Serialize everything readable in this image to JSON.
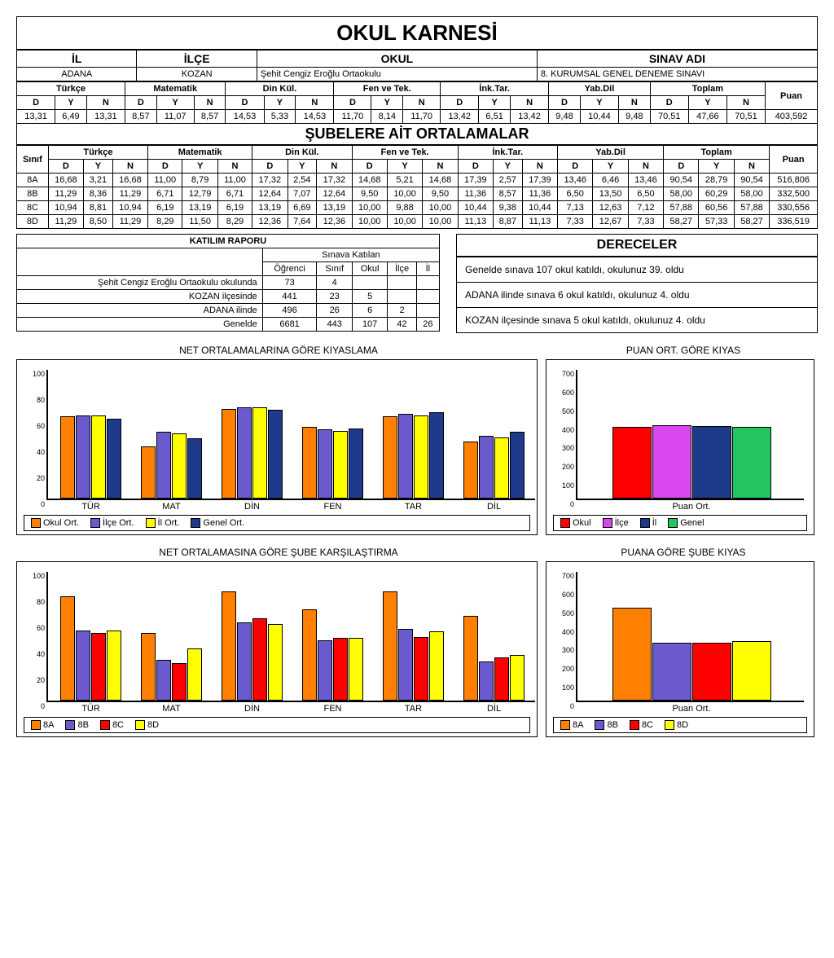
{
  "title": "OKUL KARNESİ",
  "header": {
    "labels": [
      "İL",
      "İLÇE",
      "OKUL",
      "SINAV ADI"
    ],
    "values": [
      "ADANA",
      "KOZAN",
      "Şehit Cengiz Eroğlu Ortaokulu",
      "8. KURUMSAL GENEL DENEME SINAVI"
    ]
  },
  "subject_headers": [
    "Türkçe",
    "Matematik",
    "Din Kül.",
    "Fen ve Tek.",
    "İnk.Tar.",
    "Yab.Dil",
    "Toplam"
  ],
  "dyn": [
    "D",
    "Y",
    "N"
  ],
  "puan_label": "Puan",
  "school_row": [
    "13,31",
    "6,49",
    "13,31",
    "8,57",
    "11,07",
    "8,57",
    "14,53",
    "5,33",
    "14,53",
    "11,70",
    "8,14",
    "11,70",
    "13,42",
    "6,51",
    "13,42",
    "9,48",
    "10,44",
    "9,48",
    "70,51",
    "47,66",
    "70,51",
    "403,592"
  ],
  "sube_title": "ŞUBELERE AİT ORTALAMALAR",
  "sinif_label": "Sınıf",
  "sube_rows": [
    {
      "sinif": "8A",
      "vals": [
        "16,68",
        "3,21",
        "16,68",
        "11,00",
        "8,79",
        "11,00",
        "17,32",
        "2,54",
        "17,32",
        "14,68",
        "5,21",
        "14,68",
        "17,39",
        "2,57",
        "17,39",
        "13,46",
        "6,46",
        "13,46",
        "90,54",
        "28,79",
        "90,54",
        "516,806"
      ]
    },
    {
      "sinif": "8B",
      "vals": [
        "11,29",
        "8,36",
        "11,29",
        "6,71",
        "12,79",
        "6,71",
        "12,64",
        "7,07",
        "12,64",
        "9,50",
        "10,00",
        "9,50",
        "11,36",
        "8,57",
        "11,36",
        "6,50",
        "13,50",
        "6,50",
        "58,00",
        "60,29",
        "58,00",
        "332,500"
      ]
    },
    {
      "sinif": "8C",
      "vals": [
        "10,94",
        "8,81",
        "10,94",
        "6,19",
        "13,19",
        "6,19",
        "13,19",
        "6,69",
        "13,19",
        "10,00",
        "9,88",
        "10,00",
        "10,44",
        "9,38",
        "10,44",
        "7,13",
        "12,63",
        "7,12",
        "57,88",
        "60,56",
        "57,88",
        "330,556"
      ]
    },
    {
      "sinif": "8D",
      "vals": [
        "11,29",
        "8,50",
        "11,29",
        "8,29",
        "11,50",
        "8,29",
        "12,36",
        "7,64",
        "12,36",
        "10,00",
        "10,00",
        "10,00",
        "11,13",
        "8,87",
        "11,13",
        "7,33",
        "12,67",
        "7,33",
        "58,27",
        "57,33",
        "58,27",
        "336,519"
      ]
    }
  ],
  "katilim": {
    "title": "KATILIM RAPORU",
    "band": "Sınava Katılan",
    "cols": [
      "Öğrenci",
      "Sınıf",
      "Okul",
      "İlçe",
      "İl"
    ],
    "rows": [
      {
        "label": "Şehit Cengiz Eroğlu Ortaokulu okulunda",
        "vals": [
          "73",
          "4",
          "",
          "",
          ""
        ]
      },
      {
        "label": "KOZAN ilçesinde",
        "vals": [
          "441",
          "23",
          "5",
          "",
          ""
        ]
      },
      {
        "label": "ADANA ilinde",
        "vals": [
          "496",
          "26",
          "6",
          "2",
          ""
        ]
      },
      {
        "label": "Genelde",
        "vals": [
          "6681",
          "443",
          "107",
          "42",
          "26"
        ]
      }
    ]
  },
  "dereceler": {
    "title": "DERECELER",
    "lines": [
      "Genelde sınava 107 okul katıldı, okulunuz 39. oldu",
      "ADANA ilinde sınava 6 okul katıldı, okulunuz 4. oldu",
      "KOZAN ilçesinde sınava 5 okul katıldı, okulunuz 4. oldu"
    ]
  },
  "chart1": {
    "title": "NET ORTALAMALARINA GÖRE KIYASLAMA",
    "ymax": 100,
    "yticks": [
      0,
      20,
      40,
      60,
      80,
      100
    ],
    "categories": [
      "TÜR",
      "MAT",
      "DİN",
      "FEN",
      "TAR",
      "DİL"
    ],
    "series": [
      {
        "name": "Okul Ort.",
        "color": "#ff7f00",
        "values": [
          63,
          40,
          69,
          55,
          63,
          44
        ]
      },
      {
        "name": "İlçe Ort.",
        "color": "#6a5acd",
        "values": [
          64,
          51,
          70,
          53,
          65,
          48
        ]
      },
      {
        "name": "İl Ort.",
        "color": "#ffff00",
        "values": [
          64,
          50,
          70,
          52,
          64,
          47
        ]
      },
      {
        "name": "Genel Ort.",
        "color": "#1e3a8a",
        "values": [
          61,
          46,
          68,
          54,
          66,
          51
        ]
      }
    ]
  },
  "chart2": {
    "title": "PUAN ORT. GÖRE KIYAS",
    "ymax": 700,
    "yticks": [
      0,
      100,
      200,
      300,
      400,
      500,
      600,
      700
    ],
    "categories": [
      "Puan Ort."
    ],
    "series": [
      {
        "name": "Okul",
        "color": "#ff0000",
        "values": [
          385
        ]
      },
      {
        "name": "İlçe",
        "color": "#d946ef",
        "values": [
          395
        ]
      },
      {
        "name": "İl",
        "color": "#1e3a8a",
        "values": [
          390
        ]
      },
      {
        "name": "Genel",
        "color": "#22c55e",
        "values": [
          385
        ]
      }
    ]
  },
  "chart3": {
    "title": "NET ORTALAMASINA GÖRE ŞUBE KARŞILAŞTIRMA",
    "ymax": 100,
    "yticks": [
      0,
      20,
      40,
      60,
      80,
      100
    ],
    "categories": [
      "TÜR",
      "MAT",
      "DİN",
      "FEN",
      "TAR",
      "DİL"
    ],
    "series": [
      {
        "name": "8A",
        "color": "#ff7f00",
        "values": [
          80,
          52,
          84,
          70,
          84,
          65
        ]
      },
      {
        "name": "8B",
        "color": "#6a5acd",
        "values": [
          54,
          31,
          60,
          46,
          55,
          30
        ]
      },
      {
        "name": "8C",
        "color": "#ff0000",
        "values": [
          52,
          29,
          63,
          48,
          49,
          33
        ]
      },
      {
        "name": "8D",
        "color": "#ffff00",
        "values": [
          54,
          40,
          59,
          48,
          53,
          35
        ]
      }
    ]
  },
  "chart4": {
    "title": "PUANA GÖRE ŞUBE KIYAS",
    "ymax": 700,
    "yticks": [
      0,
      100,
      200,
      300,
      400,
      500,
      600,
      700
    ],
    "categories": [
      "Puan Ort."
    ],
    "series": [
      {
        "name": "8A",
        "color": "#ff7f00",
        "values": [
          500
        ]
      },
      {
        "name": "8B",
        "color": "#6a5acd",
        "values": [
          310
        ]
      },
      {
        "name": "8C",
        "color": "#ff0000",
        "values": [
          310
        ]
      },
      {
        "name": "8D",
        "color": "#ffff00",
        "values": [
          320
        ]
      }
    ]
  }
}
